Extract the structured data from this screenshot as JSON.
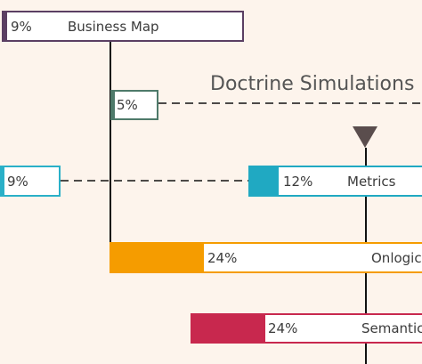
{
  "section_title": "Doctrine Simulations",
  "milestone_icon": "triangle-down-icon",
  "items": [
    {
      "key": "business-map",
      "percent": "9%",
      "name": "Business Map",
      "color": "#5b3f63",
      "progress": 0.09
    },
    {
      "key": "doctrine-a",
      "percent": "5%",
      "name": "",
      "color": "#4e7a6a",
      "progress": 0.05
    },
    {
      "key": "doctrine-b",
      "percent": "9%",
      "name": "",
      "color": "#2ab0c8",
      "progress": 0.09
    },
    {
      "key": "metrics",
      "percent": "12%",
      "name": "Metrics",
      "color": "#20a9c2",
      "progress": 0.12
    },
    {
      "key": "onlogic",
      "percent": "24%",
      "name": "Onlogic",
      "color": "#f59c00",
      "progress": 0.24
    },
    {
      "key": "semantic",
      "percent": "24%",
      "name": "Semantic",
      "color": "#c8284e",
      "progress": 0.24
    }
  ],
  "colors": {
    "background": "#fdf4ec",
    "line": "#111111",
    "marker": "#5a4d4d"
  }
}
